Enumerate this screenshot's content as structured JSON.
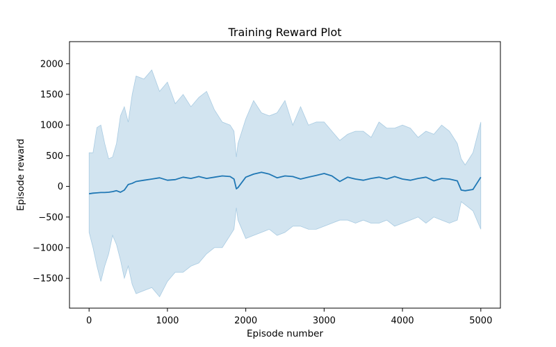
{
  "chart_data": {
    "type": "line",
    "title": "Training Reward Plot",
    "xlabel": "Episode number",
    "ylabel": "Episode reward",
    "xlim": [
      -250,
      5250
    ],
    "ylim": [
      -1985,
      2360
    ],
    "xticks": [
      0,
      1000,
      2000,
      3000,
      4000,
      5000
    ],
    "yticks": [
      -1500,
      -1000,
      -500,
      0,
      500,
      1000,
      1500,
      2000
    ],
    "grid": false,
    "legend": "none",
    "colors": {
      "line": "#1f77b4",
      "band": "#1f77b4",
      "band_opacity": 0.2,
      "axes": "#000000",
      "background": "#ffffff"
    },
    "series": [
      {
        "x": [
          0,
          50,
          100,
          150,
          200,
          250,
          300,
          350,
          400,
          450,
          500,
          550,
          600,
          700,
          800,
          900,
          1000,
          1100,
          1200,
          1300,
          1400,
          1500,
          1600,
          1700,
          1800,
          1850,
          1880,
          1900,
          2000,
          2100,
          2200,
          2300,
          2400,
          2500,
          2600,
          2700,
          2800,
          2900,
          3000,
          3100,
          3200,
          3300,
          3400,
          3500,
          3600,
          3700,
          3800,
          3900,
          4000,
          4100,
          4200,
          4300,
          4400,
          4500,
          4600,
          4700,
          4750,
          4800,
          4900,
          5000
        ],
        "y": [
          -120,
          -110,
          -105,
          -100,
          -100,
          -95,
          -85,
          -70,
          -95,
          -60,
          30,
          50,
          80,
          100,
          120,
          140,
          100,
          110,
          150,
          130,
          160,
          130,
          150,
          170,
          160,
          120,
          -40,
          -20,
          150,
          200,
          230,
          200,
          140,
          170,
          160,
          120,
          150,
          180,
          210,
          170,
          80,
          150,
          120,
          100,
          130,
          150,
          120,
          160,
          120,
          100,
          130,
          150,
          90,
          130,
          120,
          90,
          -60,
          -70,
          -50,
          150
        ],
        "upper": [
          550,
          550,
          960,
          1000,
          700,
          450,
          480,
          700,
          1150,
          1300,
          1050,
          1500,
          1800,
          1750,
          1900,
          1550,
          1700,
          1350,
          1500,
          1300,
          1450,
          1550,
          1250,
          1050,
          1000,
          900,
          480,
          700,
          1100,
          1400,
          1200,
          1150,
          1200,
          1400,
          1000,
          1300,
          1000,
          1050,
          1050,
          900,
          750,
          850,
          900,
          900,
          800,
          1050,
          950,
          950,
          1000,
          950,
          800,
          900,
          850,
          1000,
          900,
          700,
          450,
          350,
          550,
          1050
        ],
        "lower": [
          -750,
          -1000,
          -1300,
          -1550,
          -1300,
          -1100,
          -800,
          -950,
          -1200,
          -1500,
          -1300,
          -1600,
          -1750,
          -1700,
          -1650,
          -1800,
          -1550,
          -1400,
          -1400,
          -1300,
          -1250,
          -1100,
          -1000,
          -1000,
          -800,
          -700,
          -350,
          -550,
          -850,
          -800,
          -750,
          -700,
          -800,
          -750,
          -650,
          -650,
          -700,
          -700,
          -650,
          -600,
          -550,
          -550,
          -600,
          -550,
          -600,
          -600,
          -550,
          -650,
          -600,
          -550,
          -500,
          -600,
          -500,
          -550,
          -600,
          -550,
          -250,
          -300,
          -400,
          -700
        ]
      }
    ]
  }
}
